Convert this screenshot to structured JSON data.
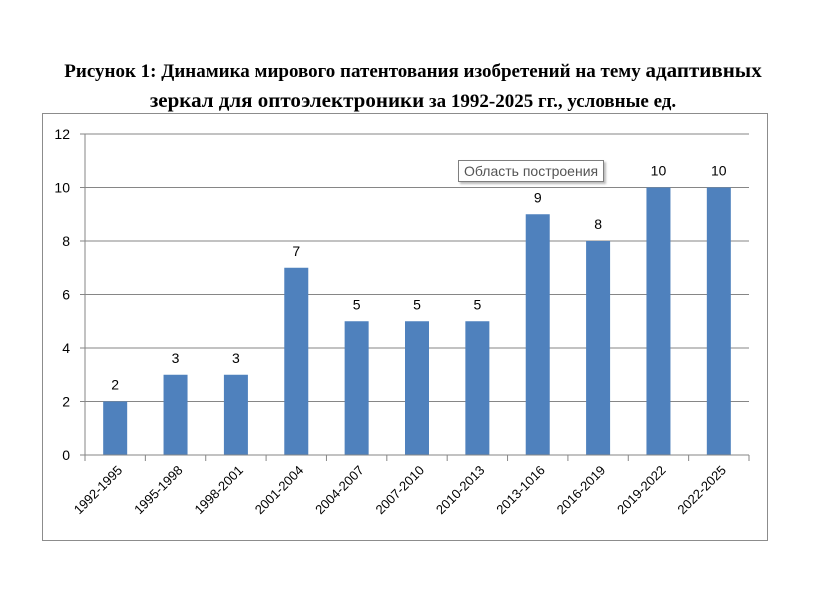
{
  "title_line1_a": "Рисунок 1: Динамика мирового патентования изобретений на тему ",
  "title_line1_b": "адаптивных",
  "title_line2_a": "зеркал для оптоэлектроники",
  "title_line2_b": " за 1992-2025 гг., условные ед.",
  "tooltip": "Область построения",
  "chart_data": {
    "type": "bar",
    "categories": [
      "1992-1995",
      "1995-1998",
      "1998-2001",
      "2001-2004",
      "2004-2007",
      "2007-2010",
      "2010-2013",
      "2013-1016",
      "2016-2019",
      "2019-2022",
      "2022-2025"
    ],
    "values": [
      2,
      3,
      3,
      7,
      5,
      5,
      5,
      9,
      8,
      10,
      10
    ],
    "ylim": [
      0,
      12
    ],
    "yticks": [
      0,
      2,
      4,
      6,
      8,
      10,
      12
    ],
    "grid": true,
    "legend": "none",
    "bar_color": "#4f81bd",
    "grid_color": "#868686"
  }
}
